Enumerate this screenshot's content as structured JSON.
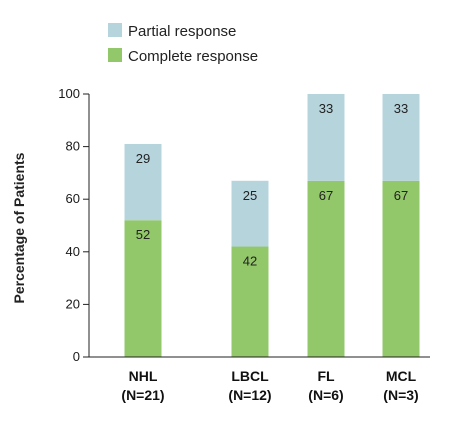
{
  "chart_data": {
    "type": "bar",
    "stacked": true,
    "ylabel": "Percentage of Patients",
    "xlabel": "",
    "ylim": [
      0,
      100
    ],
    "yticks": [
      0,
      20,
      40,
      60,
      80,
      100
    ],
    "grid": false,
    "legend_position": "top-left",
    "categories": [
      {
        "name": "NHL",
        "n": "(N=21)"
      },
      {
        "name": "LBCL",
        "n": "(N=12)"
      },
      {
        "name": "FL",
        "n": "(N=6)"
      },
      {
        "name": "MCL",
        "n": "(N=3)"
      }
    ],
    "series": [
      {
        "name": "Complete response",
        "color": "#92c76a",
        "values": [
          52,
          42,
          67,
          67
        ]
      },
      {
        "name": "Partial response",
        "color": "#b5d4dc",
        "values": [
          29,
          25,
          33,
          33
        ]
      }
    ],
    "legend": [
      {
        "label": "Partial response",
        "color": "#b5d4dc"
      },
      {
        "label": "Complete response",
        "color": "#92c76a"
      }
    ]
  }
}
